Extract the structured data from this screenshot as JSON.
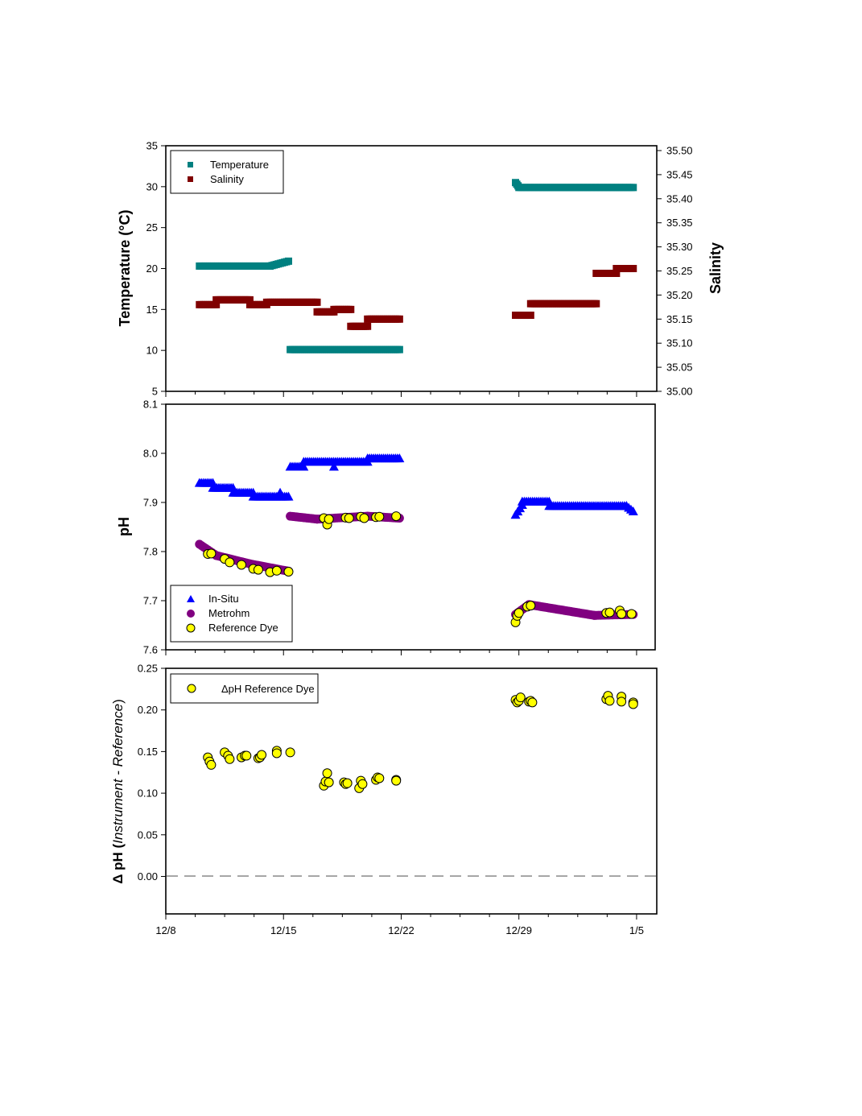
{
  "chart_data": [
    {
      "type": "scatter",
      "title": "",
      "xlabel": "",
      "ylabel": "Temperature (°C)",
      "ylabel_right": "Salinity",
      "ylim": [
        5,
        35
      ],
      "ylim_right": [
        35.0,
        35.5
      ],
      "y_ticks": [
        "35",
        "30",
        "25",
        "20",
        "15",
        "10",
        "5"
      ],
      "y_right_ticks": [
        "35.50",
        "35.45",
        "35.40",
        "35.35",
        "35.30",
        "35.25",
        "35.20",
        "35.15",
        "35.10",
        "35.05",
        "35.00"
      ],
      "grid": false,
      "legend_position": "top-left",
      "legend": [
        "Temperature",
        "Salinity"
      ],
      "series": [
        {
          "name": "Temperature",
          "axis": "left",
          "marker": "square",
          "color": "#008080",
          "segments": [
            {
              "x": [
                10.0,
                14.2
              ],
              "y": [
                20.3,
                20.3
              ]
            },
            {
              "x": [
                14.2,
                15.3
              ],
              "y": [
                20.3,
                20.9
              ]
            },
            {
              "x": [
                15.4,
                21.9
              ],
              "y": [
                10.1,
                10.1
              ]
            },
            {
              "x": [
                28.8,
                28.95
              ],
              "y": [
                30.5,
                30.1
              ]
            },
            {
              "x": [
                29.0,
                35.8
              ],
              "y": [
                29.9,
                29.9
              ]
            }
          ]
        },
        {
          "name": "Salinity",
          "axis": "right",
          "marker": "square",
          "color": "#800000",
          "segments": [
            {
              "x": [
                10.0,
                11.0
              ],
              "y": [
                35.18,
                35.18
              ]
            },
            {
              "x": [
                11.0,
                13.0
              ],
              "y": [
                35.19,
                35.19
              ]
            },
            {
              "x": [
                13.0,
                14.0
              ],
              "y": [
                35.18,
                35.18
              ]
            },
            {
              "x": [
                14.0,
                17.0
              ],
              "y": [
                35.185,
                35.185
              ]
            },
            {
              "x": [
                17.0,
                18.0
              ],
              "y": [
                35.165,
                35.165
              ]
            },
            {
              "x": [
                18.0,
                19.0
              ],
              "y": [
                35.17,
                35.17
              ]
            },
            {
              "x": [
                19.0,
                20.0
              ],
              "y": [
                35.135,
                35.135
              ]
            },
            {
              "x": [
                20.0,
                21.9
              ],
              "y": [
                35.15,
                35.15
              ]
            },
            {
              "x": [
                28.8,
                29.7
              ],
              "y": [
                35.158,
                35.158
              ]
            },
            {
              "x": [
                29.7,
                33.6
              ],
              "y": [
                35.182,
                35.182
              ]
            },
            {
              "x": [
                33.6,
                34.8
              ],
              "y": [
                35.245,
                35.245
              ]
            },
            {
              "x": [
                34.8,
                35.8
              ],
              "y": [
                35.255,
                35.255
              ]
            }
          ]
        }
      ]
    },
    {
      "type": "scatter",
      "title": "",
      "xlabel": "",
      "ylabel": "pH",
      "ylim": [
        7.6,
        8.1
      ],
      "y_ticks": [
        "8.1",
        "8.0",
        "7.9",
        "7.8",
        "7.7",
        "7.6"
      ],
      "grid": false,
      "legend_position": "bottom-left",
      "legend": [
        "In-Situ",
        "Metrohm",
        "Reference Dye"
      ],
      "series": [
        {
          "name": "In-Situ",
          "marker": "triangle",
          "color": "#0000ff",
          "segments": [
            {
              "x": [
                10.0,
                10.8
              ],
              "y": [
                7.94,
                7.94
              ]
            },
            {
              "x": [
                10.8,
                12.0
              ],
              "y": [
                7.93,
                7.93
              ]
            },
            {
              "x": [
                12.0,
                13.2
              ],
              "y": [
                7.92,
                7.92
              ]
            },
            {
              "x": [
                13.2,
                15.3
              ],
              "y": [
                7.912,
                7.912
              ]
            },
            {
              "x": [
                15.4,
                16.2
              ],
              "y": [
                7.973,
                7.973
              ]
            },
            {
              "x": [
                16.2,
                20.0
              ],
              "y": [
                7.983,
                7.983
              ]
            },
            {
              "x": [
                20.0,
                21.9
              ],
              "y": [
                7.99,
                7.99
              ]
            },
            {
              "x": [
                28.8,
                29.2
              ],
              "y": [
                7.875,
                7.895
              ]
            },
            {
              "x": [
                29.2,
                30.8
              ],
              "y": [
                7.902,
                7.902
              ]
            },
            {
              "x": [
                30.8,
                35.4
              ],
              "y": [
                7.893,
                7.893
              ]
            },
            {
              "x": [
                35.4,
                35.8
              ],
              "y": [
                7.893,
                7.882
              ]
            }
          ],
          "points": [
            {
              "x": 14.8,
              "y": 7.92
            },
            {
              "x": 18.0,
              "y": 7.973
            }
          ]
        },
        {
          "name": "Metrohm",
          "marker": "circle",
          "color": "#800080",
          "segments": [
            {
              "x": [
                10.0,
                11.0
              ],
              "y": [
                7.815,
                7.792
              ]
            },
            {
              "x": [
                11.0,
                13.0
              ],
              "y": [
                7.792,
                7.775
              ]
            },
            {
              "x": [
                13.0,
                15.3
              ],
              "y": [
                7.775,
                7.76
              ]
            },
            {
              "x": [
                15.4,
                17.0
              ],
              "y": [
                7.872,
                7.866
              ]
            },
            {
              "x": [
                17.0,
                20.0
              ],
              "y": [
                7.866,
                7.872
              ]
            },
            {
              "x": [
                20.0,
                21.9
              ],
              "y": [
                7.872,
                7.868
              ]
            },
            {
              "x": [
                28.8,
                29.6
              ],
              "y": [
                7.672,
                7.692
              ]
            },
            {
              "x": [
                29.6,
                33.5
              ],
              "y": [
                7.692,
                7.67
              ]
            },
            {
              "x": [
                33.5,
                35.8
              ],
              "y": [
                7.67,
                7.672
              ]
            }
          ]
        },
        {
          "name": "Reference Dye",
          "marker": "circle",
          "color": "#ffff00",
          "points": [
            {
              "x": 10.5,
              "y": 7.795
            },
            {
              "x": 10.7,
              "y": 7.796
            },
            {
              "x": 11.5,
              "y": 7.785
            },
            {
              "x": 11.8,
              "y": 7.778
            },
            {
              "x": 12.5,
              "y": 7.773
            },
            {
              "x": 13.2,
              "y": 7.765
            },
            {
              "x": 13.5,
              "y": 7.763
            },
            {
              "x": 14.2,
              "y": 7.758
            },
            {
              "x": 14.6,
              "y": 7.761
            },
            {
              "x": 15.3,
              "y": 7.759
            },
            {
              "x": 17.4,
              "y": 7.868
            },
            {
              "x": 17.6,
              "y": 7.855
            },
            {
              "x": 17.7,
              "y": 7.866
            },
            {
              "x": 18.7,
              "y": 7.869
            },
            {
              "x": 18.9,
              "y": 7.868
            },
            {
              "x": 19.6,
              "y": 7.871
            },
            {
              "x": 19.8,
              "y": 7.868
            },
            {
              "x": 20.5,
              "y": 7.87
            },
            {
              "x": 20.7,
              "y": 7.871
            },
            {
              "x": 21.7,
              "y": 7.872
            },
            {
              "x": 28.8,
              "y": 7.656
            },
            {
              "x": 28.9,
              "y": 7.669
            },
            {
              "x": 29.0,
              "y": 7.675
            },
            {
              "x": 29.5,
              "y": 7.688
            },
            {
              "x": 29.7,
              "y": 7.69
            },
            {
              "x": 34.2,
              "y": 7.675
            },
            {
              "x": 34.4,
              "y": 7.676
            },
            {
              "x": 35.0,
              "y": 7.68
            },
            {
              "x": 35.1,
              "y": 7.673
            },
            {
              "x": 35.7,
              "y": 7.673
            }
          ]
        }
      ]
    },
    {
      "type": "scatter",
      "title": "",
      "xlabel": "",
      "ylabel": "Δ pH (Instrument - Reference)",
      "ylabel_parts": [
        "Δ pH (",
        "Instrument - Reference",
        ")"
      ],
      "ylim": [
        -0.045,
        0.25
      ],
      "y_ticks": [
        "0.25",
        "0.20",
        "0.15",
        "0.10",
        "0.05",
        "0.00"
      ],
      "x_ticks": [
        "12/8",
        "12/15",
        "12/22",
        "12/29",
        "1/5"
      ],
      "x_tick_values": [
        8,
        15,
        22,
        29,
        36
      ],
      "xlim": [
        8,
        37.2
      ],
      "grid": false,
      "reference_line": 0,
      "legend_position": "top-left",
      "legend": [
        "ΔpH Reference Dye"
      ],
      "series": [
        {
          "name": "ΔpH Reference Dye",
          "marker": "circle",
          "color": "#ffff00",
          "points": [
            {
              "x": 10.5,
              "y": 0.143
            },
            {
              "x": 10.6,
              "y": 0.138
            },
            {
              "x": 10.7,
              "y": 0.134
            },
            {
              "x": 11.5,
              "y": 0.149
            },
            {
              "x": 11.7,
              "y": 0.145
            },
            {
              "x": 11.8,
              "y": 0.141
            },
            {
              "x": 12.5,
              "y": 0.143
            },
            {
              "x": 12.7,
              "y": 0.145
            },
            {
              "x": 12.8,
              "y": 0.145
            },
            {
              "x": 13.5,
              "y": 0.142
            },
            {
              "x": 13.6,
              "y": 0.143
            },
            {
              "x": 13.7,
              "y": 0.146
            },
            {
              "x": 14.6,
              "y": 0.151
            },
            {
              "x": 14.6,
              "y": 0.148
            },
            {
              "x": 15.4,
              "y": 0.149
            },
            {
              "x": 17.4,
              "y": 0.109
            },
            {
              "x": 17.5,
              "y": 0.114
            },
            {
              "x": 17.6,
              "y": 0.124
            },
            {
              "x": 17.7,
              "y": 0.113
            },
            {
              "x": 18.6,
              "y": 0.113
            },
            {
              "x": 18.7,
              "y": 0.111
            },
            {
              "x": 18.8,
              "y": 0.112
            },
            {
              "x": 19.5,
              "y": 0.106
            },
            {
              "x": 19.6,
              "y": 0.115
            },
            {
              "x": 19.7,
              "y": 0.111
            },
            {
              "x": 20.5,
              "y": 0.116
            },
            {
              "x": 20.6,
              "y": 0.119
            },
            {
              "x": 20.7,
              "y": 0.118
            },
            {
              "x": 21.7,
              "y": 0.116
            },
            {
              "x": 21.7,
              "y": 0.115
            },
            {
              "x": 28.8,
              "y": 0.212
            },
            {
              "x": 28.9,
              "y": 0.209
            },
            {
              "x": 29.0,
              "y": 0.211
            },
            {
              "x": 29.1,
              "y": 0.215
            },
            {
              "x": 29.6,
              "y": 0.21
            },
            {
              "x": 29.7,
              "y": 0.211
            },
            {
              "x": 29.8,
              "y": 0.209
            },
            {
              "x": 34.2,
              "y": 0.213
            },
            {
              "x": 34.3,
              "y": 0.217
            },
            {
              "x": 34.4,
              "y": 0.211
            },
            {
              "x": 35.1,
              "y": 0.216
            },
            {
              "x": 35.1,
              "y": 0.21
            },
            {
              "x": 35.8,
              "y": 0.209
            },
            {
              "x": 35.8,
              "y": 0.207
            }
          ]
        }
      ]
    }
  ]
}
